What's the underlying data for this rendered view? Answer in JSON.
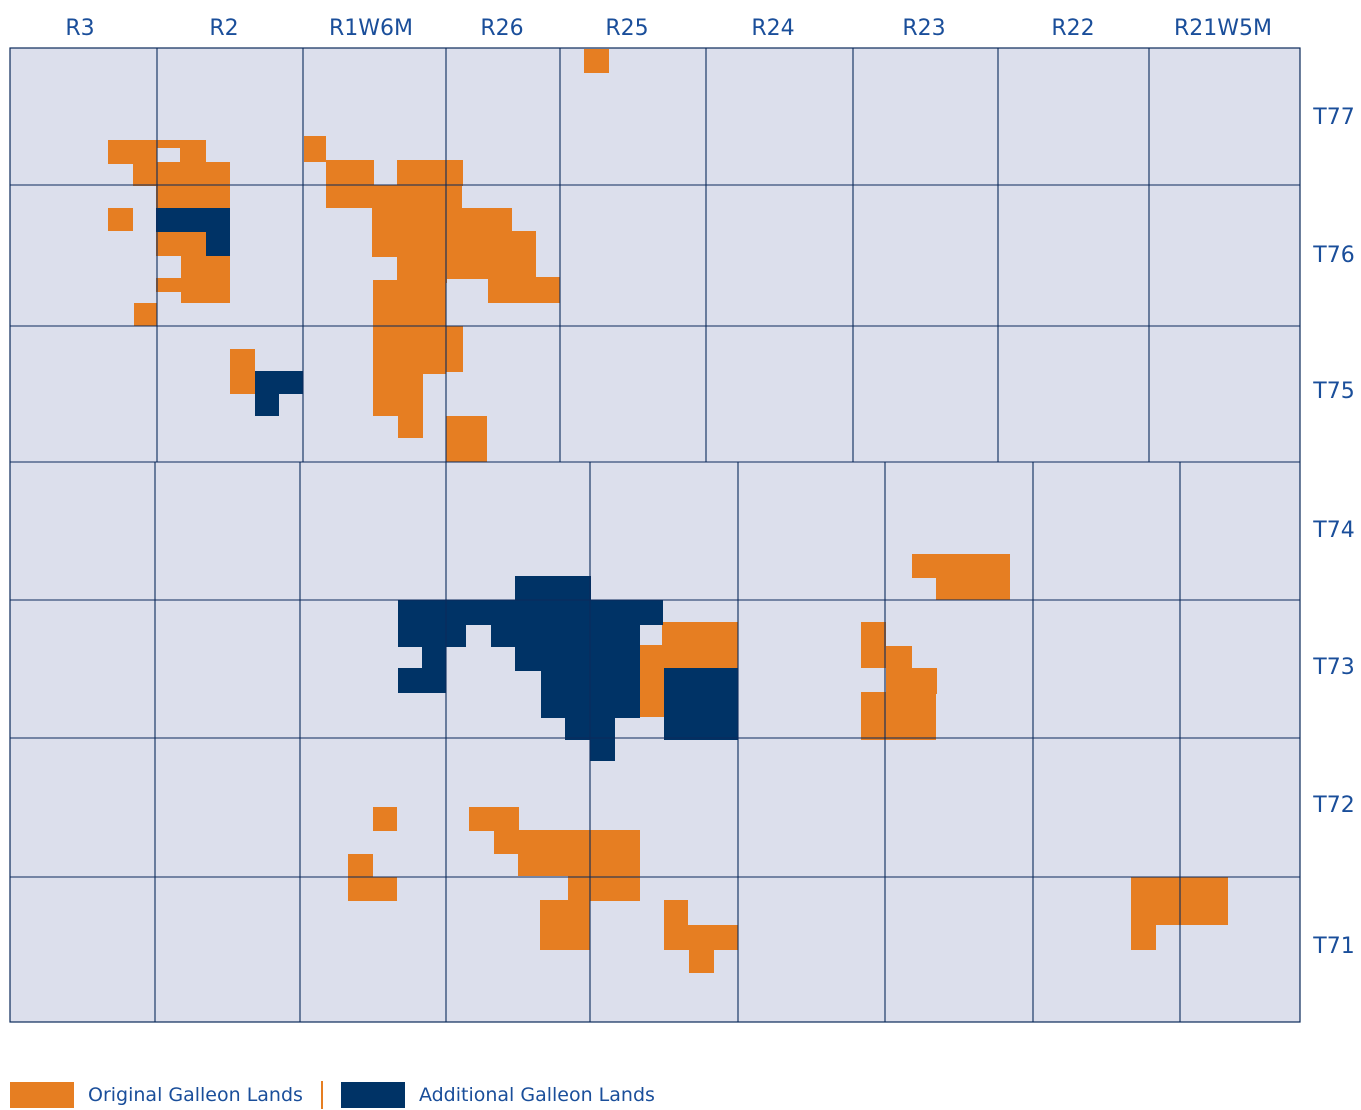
{
  "range_labels": [
    "R3",
    "R2",
    "R1W6M",
    "R26",
    "R25",
    "R24",
    "R23",
    "R22",
    "R21W5M"
  ],
  "township_labels": [
    "T77",
    "T76",
    "T75",
    "T74",
    "T73",
    "T72",
    "T71"
  ],
  "legend": [
    {
      "label": "Original Galleon Lands",
      "color": "#e67e22"
    },
    {
      "label": "Additional Galleon Lands",
      "color": "#003366"
    }
  ],
  "colors": {
    "background": "#dcdfec",
    "grid_line": "#0b2a5b",
    "original": "#e67e22",
    "additional": "#003366",
    "label_text": "#1a4e9a"
  }
}
